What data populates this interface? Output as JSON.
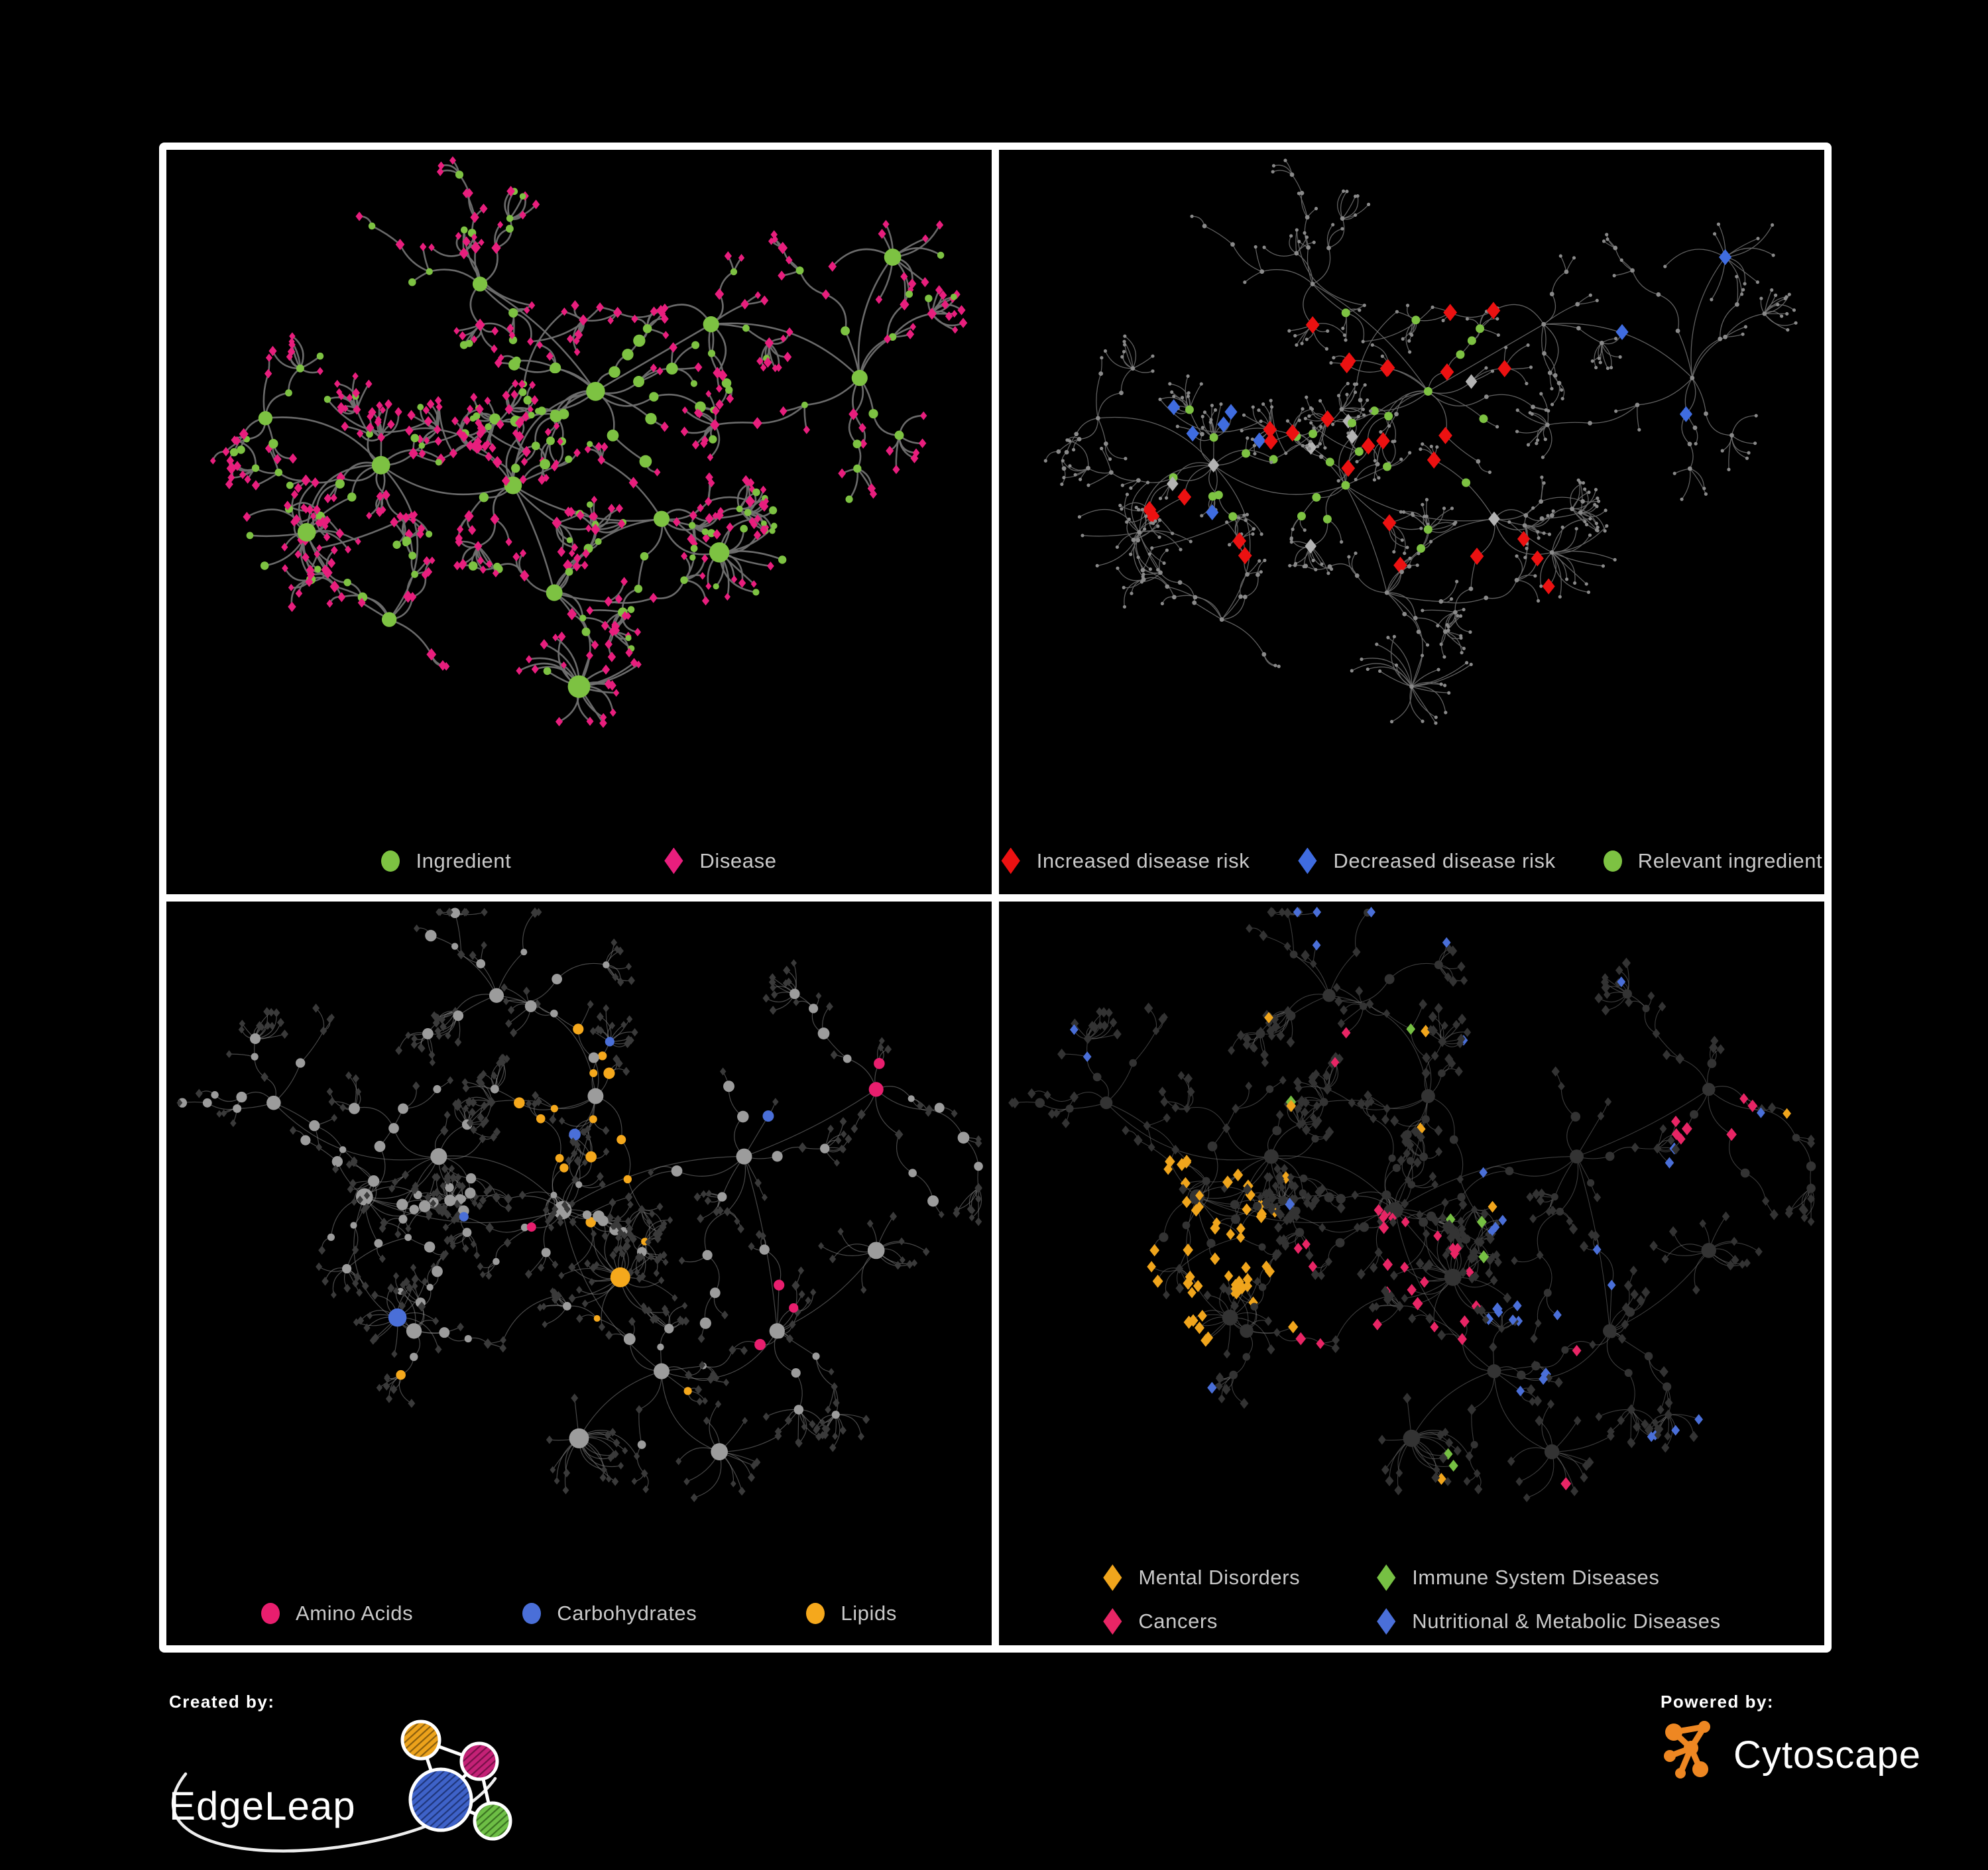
{
  "frame": {
    "background": "#000000",
    "border_color": "#ffffff"
  },
  "panels": [
    {
      "id": "ingredient-disease",
      "legend": [
        {
          "label": "Ingredient",
          "shape": "circle",
          "color": "#7dc242"
        },
        {
          "label": "Disease",
          "shape": "diamond",
          "color": "#e81e7d"
        }
      ]
    },
    {
      "id": "disease-risk",
      "legend": [
        {
          "label": "Increased disease risk",
          "shape": "diamond",
          "color": "#ec1111"
        },
        {
          "label": "Decreased disease risk",
          "shape": "diamond",
          "color": "#3f6ce0"
        },
        {
          "label": "Relevant ingredient",
          "shape": "circle",
          "color": "#7dc242"
        }
      ]
    },
    {
      "id": "nutrient-classes",
      "legend": [
        {
          "label": "Amino Acids",
          "shape": "circle",
          "color": "#e81e6e"
        },
        {
          "label": "Carbohydrates",
          "shape": "circle",
          "color": "#4a6fd8"
        },
        {
          "label": "Lipids",
          "shape": "circle",
          "color": "#f5a81c"
        }
      ]
    },
    {
      "id": "disease-categories",
      "legend": [
        {
          "label": "Mental Disorders",
          "shape": "diamond",
          "color": "#f0a51c"
        },
        {
          "label": "Immune System Diseases",
          "shape": "diamond",
          "color": "#76c043"
        },
        {
          "label": "Cancers",
          "shape": "diamond",
          "color": "#e82565"
        },
        {
          "label": "Nutritional & Metabolic Diseases",
          "shape": "diamond",
          "color": "#4a6fd8"
        }
      ]
    }
  ],
  "footer": {
    "created_by": {
      "label": "Created by:",
      "brand": "EdgeLeap"
    },
    "powered_by": {
      "label": "Powered by:",
      "brand": "Cytoscape"
    }
  },
  "chart_data": [
    {
      "type": "network",
      "panel": "top_left",
      "description": "Ingredient-disease association network",
      "node_classes": [
        {
          "name": "Ingredient",
          "shape": "circle",
          "color": "#7dc242",
          "approx_count": 240
        },
        {
          "name": "Disease",
          "shape": "diamond",
          "color": "#e81e7d",
          "approx_count": 420
        }
      ],
      "edge": {
        "color": "#707070",
        "width": 2.6,
        "opacity": 0.95
      },
      "background": "#000000",
      "legend_position": "bottom"
    },
    {
      "type": "network",
      "panel": "top_right",
      "description": "Same network, nodes highlighted by disease-risk evidence",
      "base_node_color": "#8a8a8a",
      "node_classes": [
        {
          "name": "Increased disease risk",
          "shape": "diamond",
          "color": "#ec1111",
          "approx_count": 29
        },
        {
          "name": "Decreased disease risk",
          "shape": "diamond",
          "color": "#3f6ce0",
          "approx_count": 9
        },
        {
          "name": "Unlabeled disease",
          "shape": "diamond",
          "color": "#b3b3b3",
          "approx_count": 8
        },
        {
          "name": "Relevant ingredient",
          "shape": "circle",
          "color": "#7dc242",
          "approx_count": 30
        }
      ],
      "edge": {
        "color": "#6a6a6a",
        "width": 1.3,
        "opacity": 0.9
      },
      "background": "#000000",
      "legend_position": "bottom"
    },
    {
      "type": "network",
      "panel": "bottom_left",
      "description": "Ingredients colored by nutrient class; diseases as dark diamonds",
      "ingredient_default_color": "#9c9c9c",
      "disease_node_color": "#3a3a3a",
      "node_classes": [
        {
          "name": "Amino Acids",
          "shape": "circle",
          "color": "#e81e6e",
          "approx_count": 28
        },
        {
          "name": "Carbohydrates",
          "shape": "circle",
          "color": "#4a6fd8",
          "approx_count": 16
        },
        {
          "name": "Lipids",
          "shape": "circle",
          "color": "#f5a81c",
          "approx_count": 80
        }
      ],
      "edge": {
        "color": "#909090",
        "width": 1.2,
        "opacity": 0.5
      },
      "background": "#000000",
      "legend_position": "bottom"
    },
    {
      "type": "network",
      "panel": "bottom_right",
      "description": "Diseases colored by category; other nodes dark gray",
      "base_node_color": "#333333",
      "node_classes": [
        {
          "name": "Mental Disorders",
          "shape": "diamond",
          "color": "#f0a51c",
          "approx_count": 95
        },
        {
          "name": "Immune System Diseases",
          "shape": "diamond",
          "color": "#76c043",
          "approx_count": 10
        },
        {
          "name": "Cancers",
          "shape": "diamond",
          "color": "#e82565",
          "approx_count": 70
        },
        {
          "name": "Nutritional & Metabolic Diseases",
          "shape": "diamond",
          "color": "#4a6fd8",
          "approx_count": 85
        }
      ],
      "edge": {
        "color": "#787878",
        "width": 1.1,
        "opacity": 0.5
      },
      "background": "#000000",
      "legend_position": "bottom"
    }
  ]
}
